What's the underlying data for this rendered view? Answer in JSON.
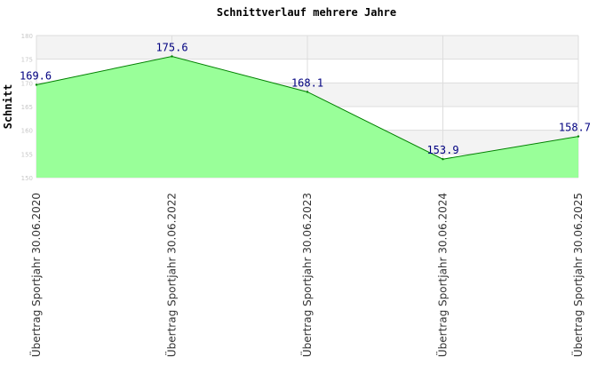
{
  "chart_data": {
    "type": "area",
    "title": "Schnittverlauf mehrere Jahre",
    "xlabel": "",
    "ylabel": "Schnitt",
    "categories": [
      "Übertrag Sportjahr 30.06.2020",
      "Übertrag Sportjahr 30.06.2022",
      "Übertrag Sportjahr 30.06.2023",
      "Übertrag Sportjahr 30.06.2024",
      "Übertrag Sportjahr 30.06.2025"
    ],
    "values": [
      169.6,
      175.6,
      168.1,
      153.9,
      158.7
    ],
    "value_labels": [
      "169.6",
      "175.6",
      "168.1",
      "153.9",
      "158.7"
    ],
    "ylim": [
      150,
      180
    ],
    "yticks": [
      "150",
      "155",
      "160",
      "165",
      "170",
      "175",
      "180"
    ],
    "grid": true,
    "band_colors": [
      "#f3f3f3",
      "#ffffff"
    ],
    "fill_color": "#99ff99",
    "line_color": "#008000",
    "label_color": "#000080"
  }
}
